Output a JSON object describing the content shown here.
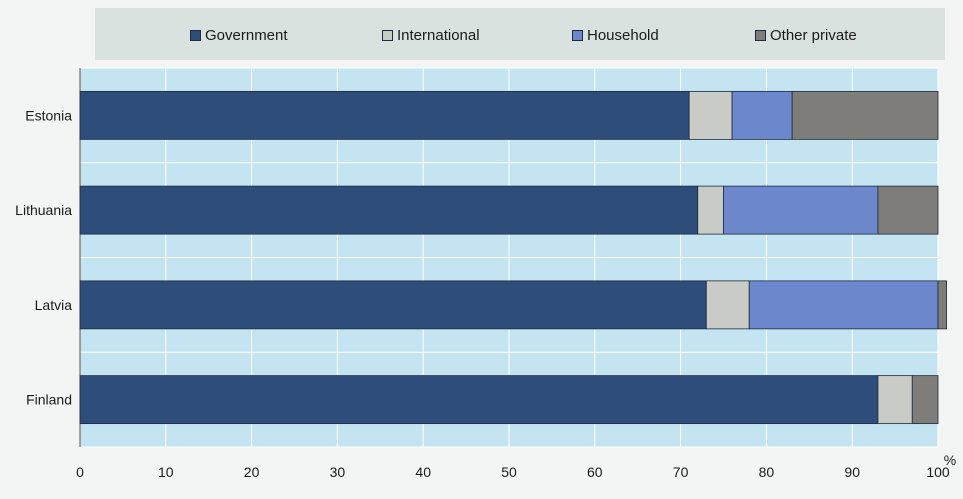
{
  "chart_data": {
    "type": "bar",
    "orientation": "horizontal",
    "stacked": true,
    "categories": [
      "Estonia",
      "Lithuania",
      "Latvia",
      "Finland"
    ],
    "series": [
      {
        "name": "Government",
        "color": "#2f4d7a",
        "values": [
          71,
          72,
          73,
          93
        ]
      },
      {
        "name": "International",
        "color": "#c9ccc6",
        "values": [
          5,
          3,
          5,
          4
        ]
      },
      {
        "name": "Household",
        "color": "#6d87cc",
        "values": [
          7,
          18,
          22,
          0
        ]
      },
      {
        "name": "Other private",
        "color": "#7e7d79",
        "values": [
          17,
          7,
          1,
          3
        ]
      }
    ],
    "xlim": [
      0,
      100
    ],
    "xticks": [
      "0",
      "10",
      "20",
      "30",
      "40",
      "50",
      "60",
      "70",
      "80",
      "90",
      "100"
    ],
    "xunit": "%",
    "legend_position": "top",
    "grid": true,
    "plot_background": "#c5e4f1"
  }
}
